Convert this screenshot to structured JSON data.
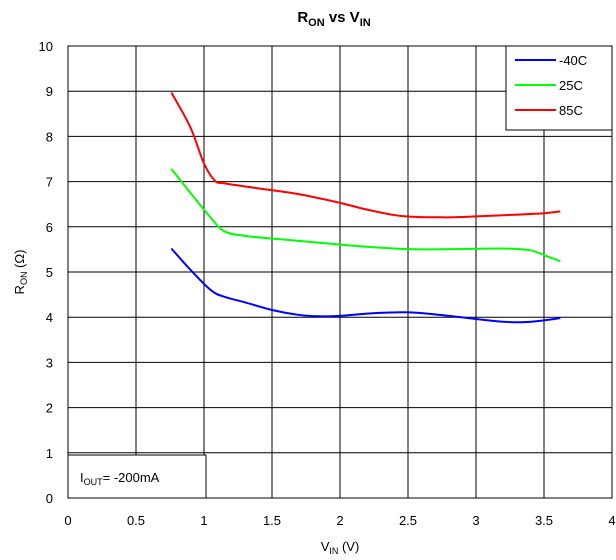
{
  "chart_data": {
    "type": "line",
    "title": {
      "main": "R",
      "main_sub": "ON",
      "mid": " vs V",
      "mid_sub": "IN"
    },
    "xlabel": {
      "main": "V",
      "sub": "IN",
      "suffix": " (V)"
    },
    "ylabel": {
      "main": "R",
      "sub": "ON",
      "suffix": " (Ω)"
    },
    "xlim": [
      0,
      4
    ],
    "ylim": [
      0,
      10
    ],
    "xticks": [
      "0",
      "0.5",
      "1",
      "1.5",
      "2",
      "2.5",
      "3",
      "3.5",
      "4"
    ],
    "yticks": [
      "0",
      "1",
      "2",
      "3",
      "4",
      "5",
      "6",
      "7",
      "8",
      "9",
      "10"
    ],
    "grid": true,
    "legend_position": "top-right",
    "annotation": {
      "main": "I",
      "sub": "OUT",
      "suffix": "= -200mA"
    },
    "series": [
      {
        "name": "-40C",
        "color": "#0000ff",
        "points": [
          [
            0.76,
            5.52
          ],
          [
            0.9,
            5.05
          ],
          [
            1.05,
            4.6
          ],
          [
            1.15,
            4.45
          ],
          [
            1.3,
            4.33
          ],
          [
            1.5,
            4.16
          ],
          [
            1.7,
            4.05
          ],
          [
            1.85,
            4.02
          ],
          [
            2.0,
            4.03
          ],
          [
            2.2,
            4.08
          ],
          [
            2.45,
            4.11
          ],
          [
            2.6,
            4.09
          ],
          [
            2.8,
            4.03
          ],
          [
            3.0,
            3.96
          ],
          [
            3.2,
            3.9
          ],
          [
            3.35,
            3.89
          ],
          [
            3.5,
            3.93
          ],
          [
            3.62,
            3.98
          ]
        ]
      },
      {
        "name": "25C",
        "color": "#00ff00",
        "points": [
          [
            0.76,
            7.28
          ],
          [
            0.9,
            6.75
          ],
          [
            1.05,
            6.2
          ],
          [
            1.15,
            5.9
          ],
          [
            1.3,
            5.8
          ],
          [
            1.5,
            5.74
          ],
          [
            1.8,
            5.66
          ],
          [
            2.1,
            5.58
          ],
          [
            2.4,
            5.52
          ],
          [
            2.6,
            5.5
          ],
          [
            2.9,
            5.51
          ],
          [
            3.2,
            5.52
          ],
          [
            3.4,
            5.48
          ],
          [
            3.52,
            5.35
          ],
          [
            3.62,
            5.24
          ]
        ]
      },
      {
        "name": "85C",
        "color": "#ff0000",
        "points": [
          [
            0.76,
            8.97
          ],
          [
            0.9,
            8.2
          ],
          [
            1.0,
            7.4
          ],
          [
            1.08,
            7.02
          ],
          [
            1.15,
            6.96
          ],
          [
            1.4,
            6.85
          ],
          [
            1.7,
            6.72
          ],
          [
            2.0,
            6.53
          ],
          [
            2.2,
            6.38
          ],
          [
            2.45,
            6.24
          ],
          [
            2.75,
            6.21
          ],
          [
            3.0,
            6.23
          ],
          [
            3.3,
            6.27
          ],
          [
            3.5,
            6.3
          ],
          [
            3.62,
            6.34
          ]
        ]
      }
    ]
  }
}
